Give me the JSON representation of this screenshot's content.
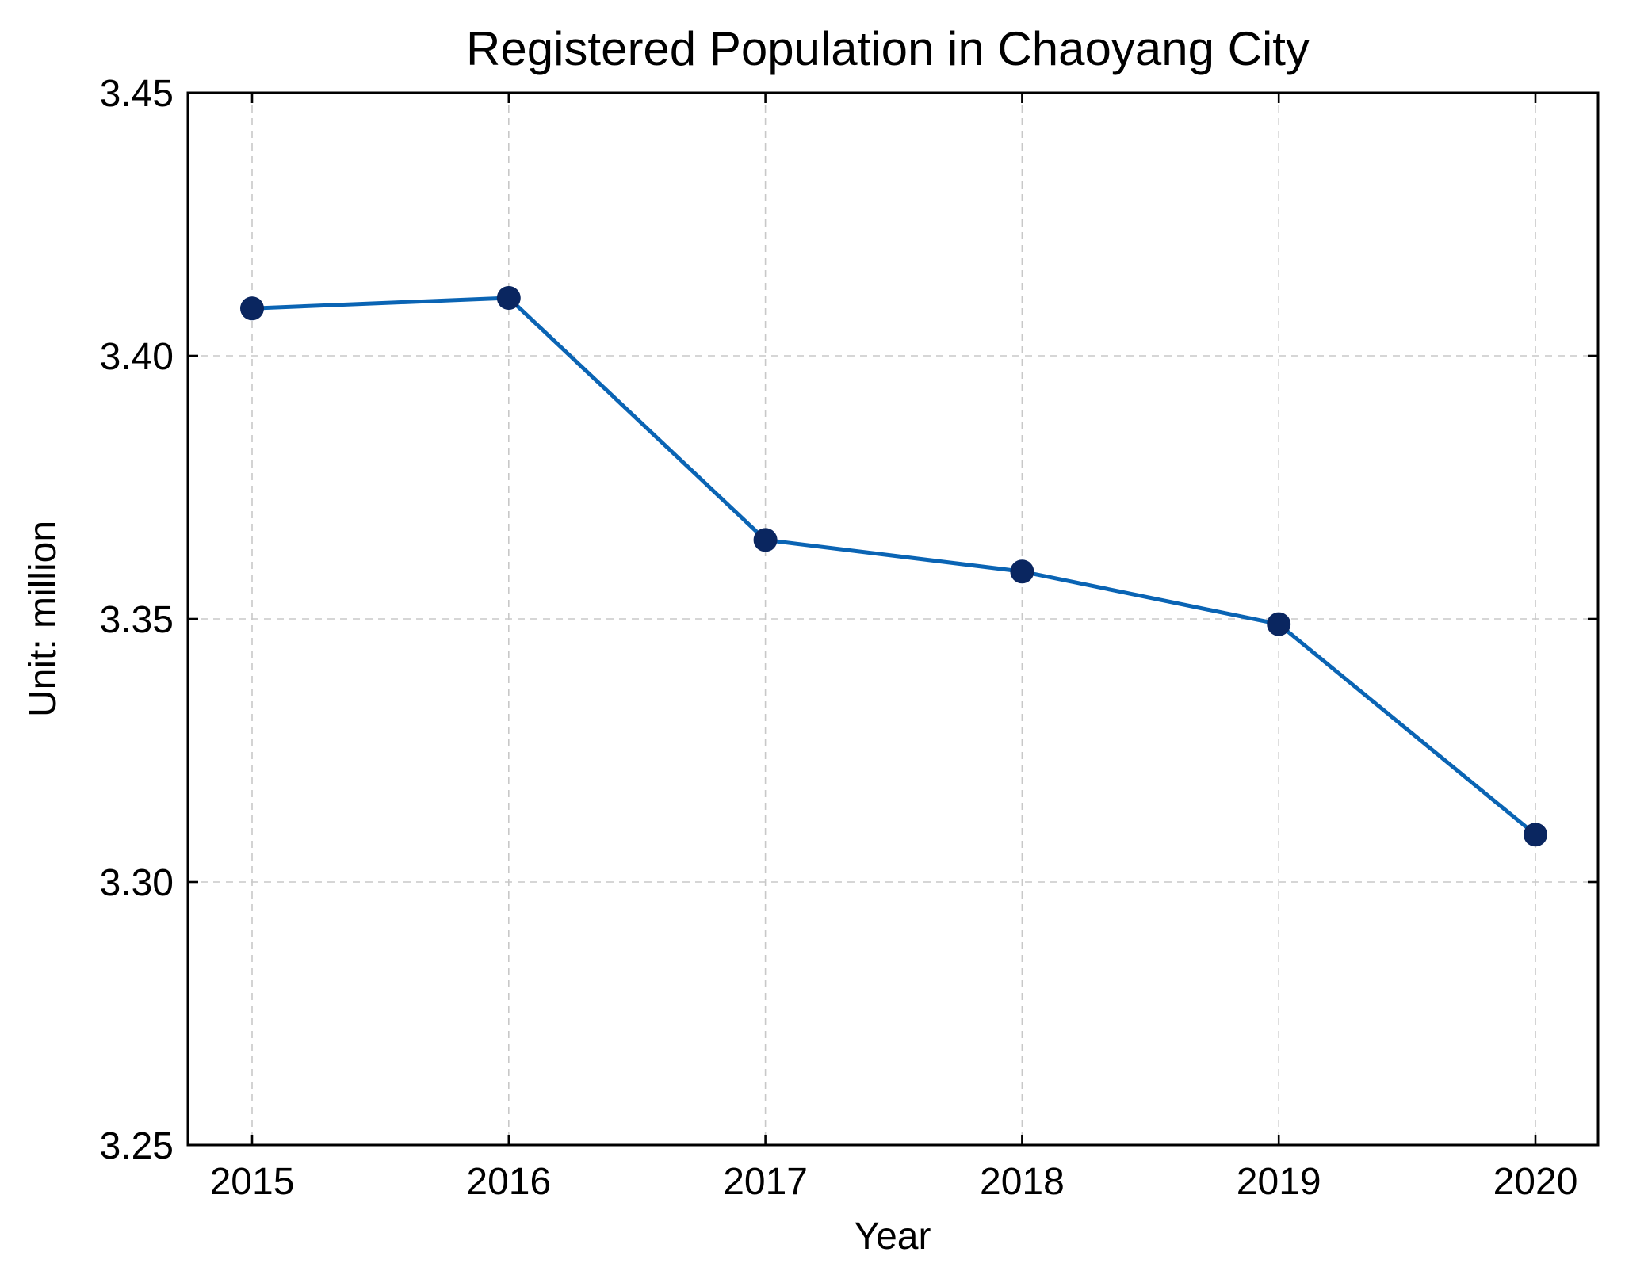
{
  "chart_data": {
    "type": "line",
    "title": "Registered Population in Chaoyang City",
    "xlabel": "Year",
    "ylabel": "Unit: million",
    "categories": [
      "2015",
      "2016",
      "2017",
      "2018",
      "2019",
      "2020"
    ],
    "series": [
      {
        "name": "Registered Population",
        "values": [
          3.409,
          3.411,
          3.365,
          3.359,
          3.349,
          3.309
        ]
      }
    ],
    "ylim": [
      3.25,
      3.45
    ],
    "yticks": [
      3.25,
      3.3,
      3.35,
      3.4,
      3.45
    ],
    "ytick_labels": [
      "3.25",
      "3.30",
      "3.35",
      "3.40",
      "3.45"
    ],
    "grid": true,
    "colors": {
      "line": "#0a64b4",
      "marker": "#0a2660"
    }
  }
}
